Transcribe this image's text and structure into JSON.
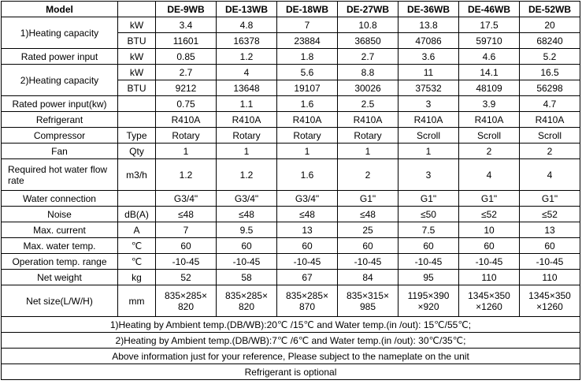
{
  "table": {
    "header": {
      "title": "Model",
      "models": [
        "DE-9WB",
        "DE-13WB",
        "DE-18WB",
        "DE-27WB",
        "DE-36WB",
        "DE-46WB",
        "DE-52WB"
      ]
    },
    "rows": [
      {
        "label": "1)Heating capacity",
        "lines": [
          {
            "unit": "kW",
            "values": [
              "3.4",
              "4.8",
              "7",
              "10.8",
              "13.8",
              "17.5",
              "20"
            ]
          },
          {
            "unit": "BTU",
            "values": [
              "11601",
              "16378",
              "23884",
              "36850",
              "47086",
              "59710",
              "68240"
            ]
          }
        ]
      },
      {
        "label": "Rated power input",
        "unit": "kW",
        "values": [
          "0.85",
          "1.2",
          "1.8",
          "2.7",
          "3.6",
          "4.6",
          "5.2"
        ]
      },
      {
        "label": "2)Heating capacity",
        "lines": [
          {
            "unit": "kW",
            "values": [
              "2.7",
              "4",
              "5.6",
              "8.8",
              "11",
              "14.1",
              "16.5"
            ]
          },
          {
            "unit": "BTU",
            "values": [
              "9212",
              "13648",
              "19107",
              "30026",
              "37532",
              "48109",
              "56298"
            ]
          }
        ]
      },
      {
        "label": "Rated power input(kw)",
        "values": [
          "0.75",
          "1.1",
          "1.6",
          "2.5",
          "3",
          "3.9",
          "4.7"
        ]
      },
      {
        "label": "Refrigerant",
        "values": [
          "R410A",
          "R410A",
          "R410A",
          "R410A",
          "R410A",
          "R410A",
          "R410A"
        ]
      },
      {
        "label": "Compressor",
        "unit": "Type",
        "values": [
          "Rotary",
          "Rotary",
          "Rotary",
          "Rotary",
          "Scroll",
          "Scroll",
          "Scroll"
        ]
      },
      {
        "label": "Fan",
        "unit": "Qty",
        "values": [
          "1",
          "1",
          "1",
          "1",
          "1",
          "2",
          "2"
        ]
      },
      {
        "label": "Required hot water flow rate",
        "unit": "m3/h",
        "values": [
          "1.2",
          "1.2",
          "1.6",
          "2",
          "3",
          "4",
          "4"
        ]
      },
      {
        "label": "Water connection",
        "values": [
          "G3/4\"",
          "G3/4\"",
          "G3/4\"",
          "G1\"",
          "G1\"",
          "G1\"",
          "G1\""
        ]
      },
      {
        "label": "Noise",
        "unit": "dB(A)",
        "values": [
          "≤48",
          "≤48",
          "≤48",
          "≤48",
          "≤50",
          "≤52",
          "≤52"
        ]
      },
      {
        "label": "Max. current",
        "unit": "A",
        "values": [
          "7",
          "9.5",
          "13",
          "25",
          "7.5",
          "10",
          "13"
        ]
      },
      {
        "label": "Max. water temp.",
        "unit": "℃",
        "values": [
          "60",
          "60",
          "60",
          "60",
          "60",
          "60",
          "60"
        ]
      },
      {
        "label": "Operation temp. range",
        "unit": "℃",
        "values": [
          "-10-45",
          "-10-45",
          "-10-45",
          "-10-45",
          "-10-45",
          "-10-45",
          "-10-45"
        ]
      },
      {
        "label": "Net weight",
        "unit": "kg",
        "values": [
          "52",
          "58",
          "67",
          "84",
          "95",
          "110",
          "110"
        ]
      },
      {
        "label": "Net size(L/W/H)",
        "unit": "mm",
        "values": [
          "835×285×820",
          "835×285×820",
          "835×285×870",
          "835×315×985",
          "1195×390×920",
          "1345×350×1260",
          "1345×350×1260"
        ]
      }
    ],
    "notes": [
      "1)Heating by Ambient temp.(DB/WB):20℃ /15℃ and Water temp.(in /out): 15℃/55℃;",
      "2)Heating by Ambient temp.(DB/WB):7℃ /6℃ and Water temp.(in /out): 30℃/35℃;",
      "Above information just for your reference, Please subject to the nameplate on the unit",
      "Refrigerant is optional"
    ]
  }
}
